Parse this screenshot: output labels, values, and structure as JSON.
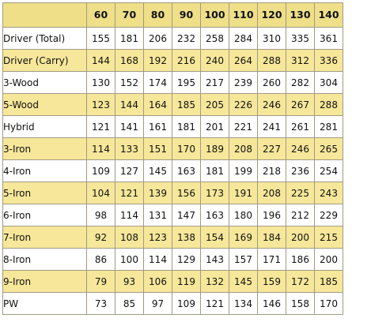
{
  "colors": {
    "header_background": "#eedf88",
    "highlight_row_background": "#f6e79a",
    "plain_row_background": "#ffffff",
    "grid_line": "#a09a84"
  },
  "table": {
    "columns": [
      "60",
      "70",
      "80",
      "90",
      "100",
      "110",
      "120",
      "130",
      "140"
    ],
    "rows": [
      {
        "club": "Driver (Total)",
        "highlight": false,
        "values": [
          "155",
          "181",
          "206",
          "232",
          "258",
          "284",
          "310",
          "335",
          "361"
        ]
      },
      {
        "club": "Driver (Carry)",
        "highlight": true,
        "values": [
          "144",
          "168",
          "192",
          "216",
          "240",
          "264",
          "288",
          "312",
          "336"
        ]
      },
      {
        "club": "3-Wood",
        "highlight": false,
        "values": [
          "130",
          "152",
          "174",
          "195",
          "217",
          "239",
          "260",
          "282",
          "304"
        ]
      },
      {
        "club": "5-Wood",
        "highlight": true,
        "values": [
          "123",
          "144",
          "164",
          "185",
          "205",
          "226",
          "246",
          "267",
          "288"
        ]
      },
      {
        "club": "Hybrid",
        "highlight": false,
        "values": [
          "121",
          "141",
          "161",
          "181",
          "201",
          "221",
          "241",
          "261",
          "281"
        ]
      },
      {
        "club": "3-Iron",
        "highlight": true,
        "values": [
          "114",
          "133",
          "151",
          "170",
          "189",
          "208",
          "227",
          "246",
          "265"
        ]
      },
      {
        "club": "4-Iron",
        "highlight": false,
        "values": [
          "109",
          "127",
          "145",
          "163",
          "181",
          "199",
          "218",
          "236",
          "254"
        ]
      },
      {
        "club": "5-Iron",
        "highlight": true,
        "values": [
          "104",
          "121",
          "139",
          "156",
          "173",
          "191",
          "208",
          "225",
          "243"
        ]
      },
      {
        "club": "6-Iron",
        "highlight": false,
        "values": [
          "98",
          "114",
          "131",
          "147",
          "163",
          "180",
          "196",
          "212",
          "229"
        ]
      },
      {
        "club": "7-Iron",
        "highlight": true,
        "values": [
          "92",
          "108",
          "123",
          "138",
          "154",
          "169",
          "184",
          "200",
          "215"
        ]
      },
      {
        "club": "8-Iron",
        "highlight": false,
        "values": [
          "86",
          "100",
          "114",
          "129",
          "143",
          "157",
          "171",
          "186",
          "200"
        ]
      },
      {
        "club": "9-Iron",
        "highlight": true,
        "values": [
          "79",
          "93",
          "106",
          "119",
          "132",
          "145",
          "159",
          "172",
          "185"
        ]
      },
      {
        "club": "PW",
        "highlight": false,
        "values": [
          "73",
          "85",
          "97",
          "109",
          "121",
          "134",
          "146",
          "158",
          "170"
        ]
      }
    ]
  }
}
